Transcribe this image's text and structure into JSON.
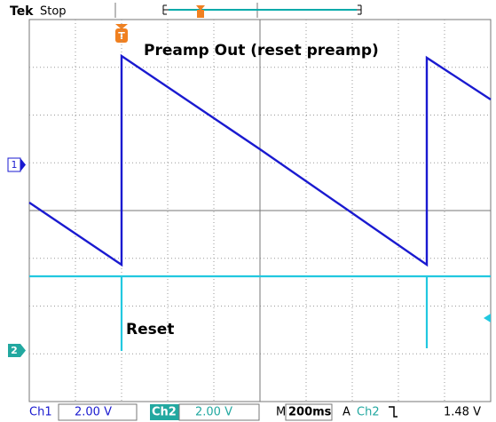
{
  "header": {
    "brand": "Tek",
    "status": "Stop"
  },
  "trigger_marker": "T",
  "annotations": {
    "ch1": "Preamp Out (reset preamp)",
    "ch2": "Reset"
  },
  "channel_markers": [
    "1",
    "2"
  ],
  "footer": {
    "ch1_label": "Ch1",
    "ch1_scale": "2.00 V",
    "ch2_label": "Ch2",
    "ch2_scale": "2.00 V",
    "timebase_label": "M",
    "timebase": "200ms",
    "trigger_mode": "A",
    "trigger_source": "Ch2",
    "trigger_level": "1.48 V"
  }
}
